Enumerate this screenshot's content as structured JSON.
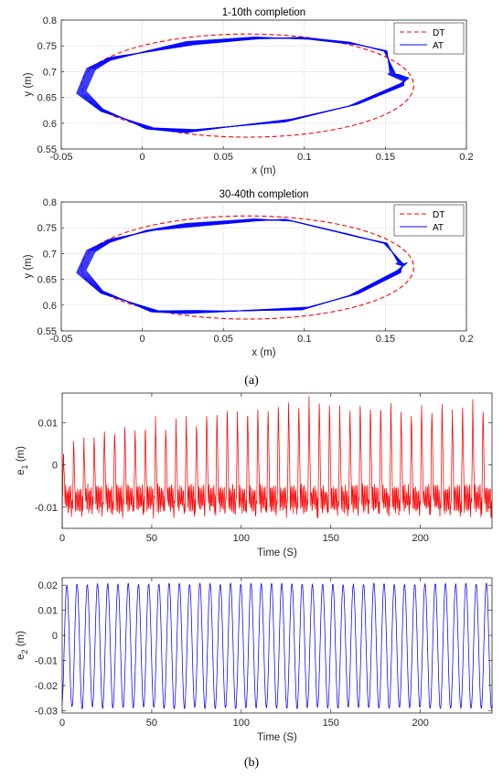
{
  "captions": {
    "a": "(a)",
    "b": "(b)"
  },
  "colors": {
    "dt": "#ff0000",
    "at": "#0000ff",
    "e1": "#ff0000",
    "e2": "#0000ff"
  },
  "chart_data": [
    {
      "type": "line",
      "title": "1-10th completion",
      "xlabel": "x (m)",
      "ylabel": "y (m)",
      "xlim": [
        -0.05,
        0.2
      ],
      "ylim": [
        0.55,
        0.8
      ],
      "xticks": [
        "-0.05",
        "0",
        "0.05",
        "0.1",
        "0.15",
        "0.2"
      ],
      "yticks": [
        "0.55",
        "0.6",
        "0.65",
        "0.7",
        "0.75",
        "0.8"
      ],
      "grid": true,
      "legend": "top-right",
      "series": [
        {
          "name": "DT",
          "style": "dashed",
          "shape": "ellipse",
          "center": [
            0.065,
            0.673
          ],
          "radii": [
            0.1025,
            0.1
          ]
        },
        {
          "name": "AT",
          "style": "solid",
          "laps": 10,
          "x": [
            0.155,
            0.163,
            0.16,
            0.13,
            0.09,
            0.05,
            0.03,
            0.005,
            -0.025,
            -0.038,
            -0.032,
            -0.02,
            0.005,
            0.03,
            0.07,
            0.1,
            0.13,
            0.15,
            0.155
          ],
          "y": [
            0.695,
            0.685,
            0.675,
            0.635,
            0.605,
            0.592,
            0.585,
            0.59,
            0.625,
            0.66,
            0.705,
            0.725,
            0.74,
            0.755,
            0.765,
            0.765,
            0.755,
            0.74,
            0.695
          ]
        }
      ]
    },
    {
      "type": "line",
      "title": "30-40th completion",
      "xlabel": "x (m)",
      "ylabel": "y (m)",
      "xlim": [
        -0.05,
        0.2
      ],
      "ylim": [
        0.55,
        0.8
      ],
      "xticks": [
        "-0.05",
        "0",
        "0.05",
        "0.1",
        "0.15",
        "0.2"
      ],
      "yticks": [
        "0.55",
        "0.6",
        "0.65",
        "0.7",
        "0.75",
        "0.8"
      ],
      "grid": true,
      "legend": "top-right",
      "series": [
        {
          "name": "DT",
          "style": "dashed",
          "shape": "ellipse",
          "center": [
            0.065,
            0.673
          ],
          "radii": [
            0.1025,
            0.1
          ]
        },
        {
          "name": "AT",
          "style": "solid",
          "laps": 10,
          "x": [
            0.16,
            0.162,
            0.158,
            0.13,
            0.1,
            0.05,
            0.03,
            0.008,
            -0.025,
            -0.038,
            -0.032,
            -0.02,
            0.005,
            0.03,
            0.07,
            0.09,
            0.13,
            0.15,
            0.16
          ],
          "y": [
            0.68,
            0.68,
            0.665,
            0.62,
            0.593,
            0.588,
            0.587,
            0.588,
            0.625,
            0.665,
            0.705,
            0.725,
            0.745,
            0.755,
            0.765,
            0.765,
            0.735,
            0.72,
            0.68
          ]
        }
      ]
    },
    {
      "type": "line",
      "title": "",
      "xlabel": "Time (S)",
      "ylabel": "e",
      "ylabel_sub": "1",
      "ylabel_unit": " (m)",
      "xlim": [
        0,
        240
      ],
      "ylim": [
        -0.015,
        0.017
      ],
      "xticks": [
        0,
        50,
        100,
        150,
        200
      ],
      "yticks": [
        "0.01",
        "0",
        "-0.01"
      ],
      "ytick_values": [
        0.01,
        0,
        -0.01
      ],
      "grid": false,
      "series": [
        {
          "name": "",
          "cycles": 42,
          "period_s": 5.714,
          "max_start": 0.004,
          "max_end": 0.016,
          "min": -0.012,
          "plateau": -0.008
        }
      ]
    },
    {
      "type": "line",
      "title": "",
      "xlabel": "Time (S)",
      "ylabel": "e",
      "ylabel_sub": "2",
      "ylabel_unit": " (m)",
      "xlim": [
        0,
        240
      ],
      "ylim": [
        -0.031,
        0.023
      ],
      "xticks": [
        0,
        50,
        100,
        150,
        200
      ],
      "yticks": [
        "0.02",
        "0.01",
        "0",
        "-0.01",
        "-0.02",
        "-0.03"
      ],
      "ytick_values": [
        0.02,
        0.01,
        0,
        -0.01,
        -0.02,
        -0.03
      ],
      "grid": false,
      "series": [
        {
          "name": "",
          "cycles": 42,
          "period_s": 5.714,
          "max": 0.0205,
          "min": -0.029
        }
      ]
    }
  ]
}
